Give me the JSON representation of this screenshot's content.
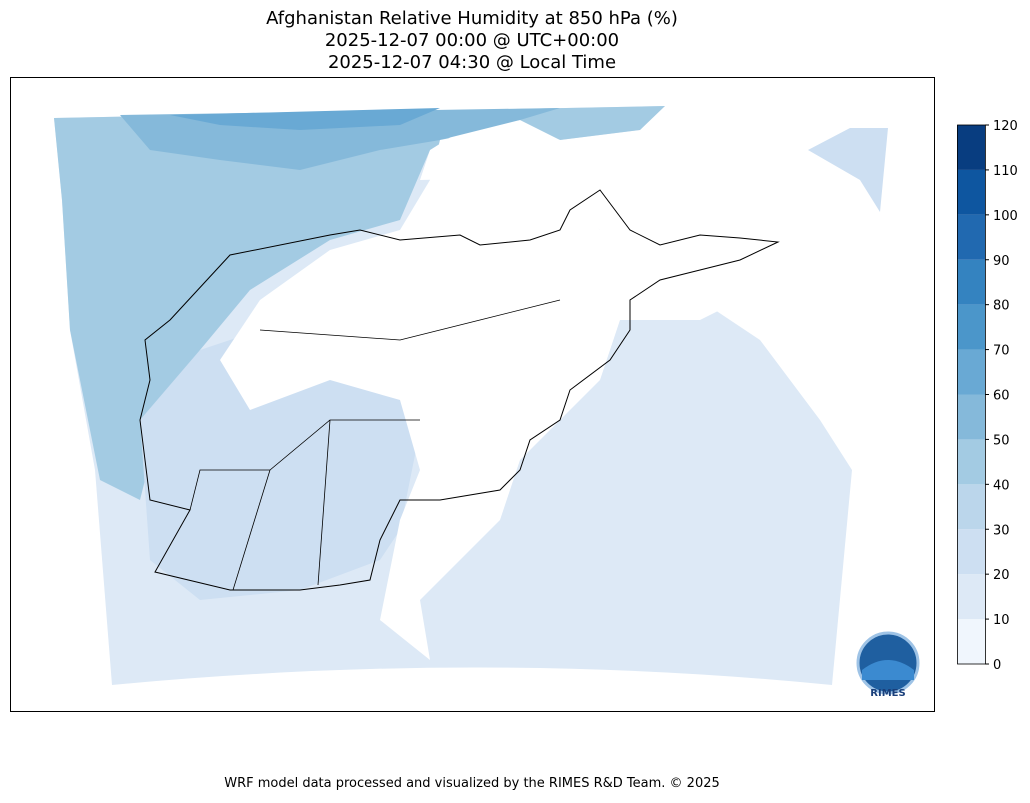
{
  "header": {
    "title_lines": [
      "Afghanistan Relative Humidity at 850 hPa (%)",
      "2025-12-07 00:00 @ UTC+00:00",
      "2025-12-07 04:30 @ Local Time"
    ]
  },
  "colorbar": {
    "lim": [
      0,
      120
    ],
    "ticks": [
      0,
      10,
      20,
      30,
      40,
      50,
      60,
      70,
      80,
      90,
      100,
      110,
      120
    ],
    "colors": [
      "#f0f6fd",
      "#dde9f6",
      "#cddff2",
      "#bbd6eb",
      "#a3cbe3",
      "#85b9da",
      "#69a9d4",
      "#4b96ca",
      "#3483c0",
      "#2169b0",
      "#0e56a0",
      "#083d80"
    ]
  },
  "logo": {
    "text": "RIMES"
  },
  "footer": {
    "text": "WRF model data processed and visualized by the RIMES R&D Team. © 2025"
  }
}
